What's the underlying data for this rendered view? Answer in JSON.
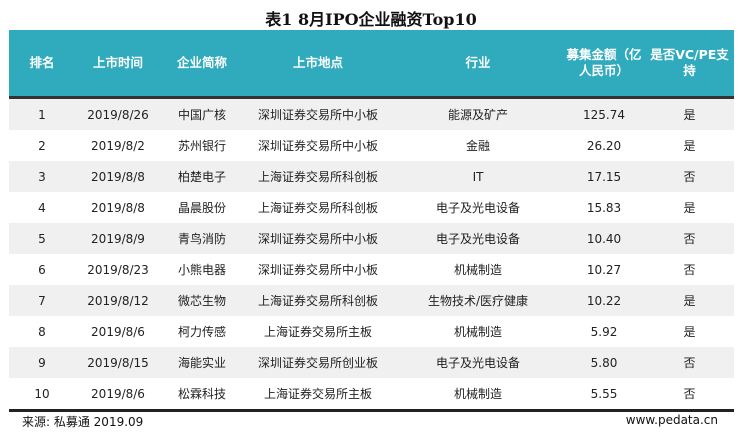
{
  "title": "表1  8月IPO企业融资Top10",
  "headers": [
    "排名",
    "上市时间",
    "企业简称",
    "上市地点",
    "行业",
    "募集金额（亿人民币）",
    "是否VC/PE支持"
  ],
  "rows": [
    [
      "1",
      "2019/8/26",
      "中国广核",
      "深圳证券交易所中小板",
      "能源及矿产",
      "125.74",
      "是"
    ],
    [
      "2",
      "2019/8/2",
      "苏州银行",
      "深圳证券交易所中小板",
      "金融",
      "26.20",
      "是"
    ],
    [
      "3",
      "2019/8/8",
      "柏楚电子",
      "上海证券交易所科创板",
      "IT",
      "17.15",
      "否"
    ],
    [
      "4",
      "2019/8/8",
      "晶晨股份",
      "上海证券交易所科创板",
      "电子及光电设备",
      "15.83",
      "是"
    ],
    [
      "5",
      "2019/8/9",
      "青鸟消防",
      "深圳证券交易所中小板",
      "电子及光电设备",
      "10.40",
      "否"
    ],
    [
      "6",
      "2019/8/23",
      "小熊电器",
      "深圳证券交易所中小板",
      "机械制造",
      "10.27",
      "否"
    ],
    [
      "7",
      "2019/8/12",
      "微芯生物",
      "上海证券交易所科创板",
      "生物技术/医疗健康",
      "10.22",
      "是"
    ],
    [
      "8",
      "2019/8/6",
      "柯力传感",
      "上海证券交易所主板",
      "机械制造",
      "5.92",
      "是"
    ],
    [
      "9",
      "2019/8/15",
      "海能实业",
      "深圳证券交易所创业板",
      "电子及光电设备",
      "5.80",
      "否"
    ],
    [
      "10",
      "2019/8/6",
      "松霖科技",
      "上海证券交易所主板",
      "机械制造",
      "5.55",
      "否"
    ]
  ],
  "source": "来源: 私募通  2019.09",
  "website": "www.pedata.cn",
  "colors": {
    "header_bg": "#2fabbd",
    "stripe": "#f0f0f0"
  }
}
